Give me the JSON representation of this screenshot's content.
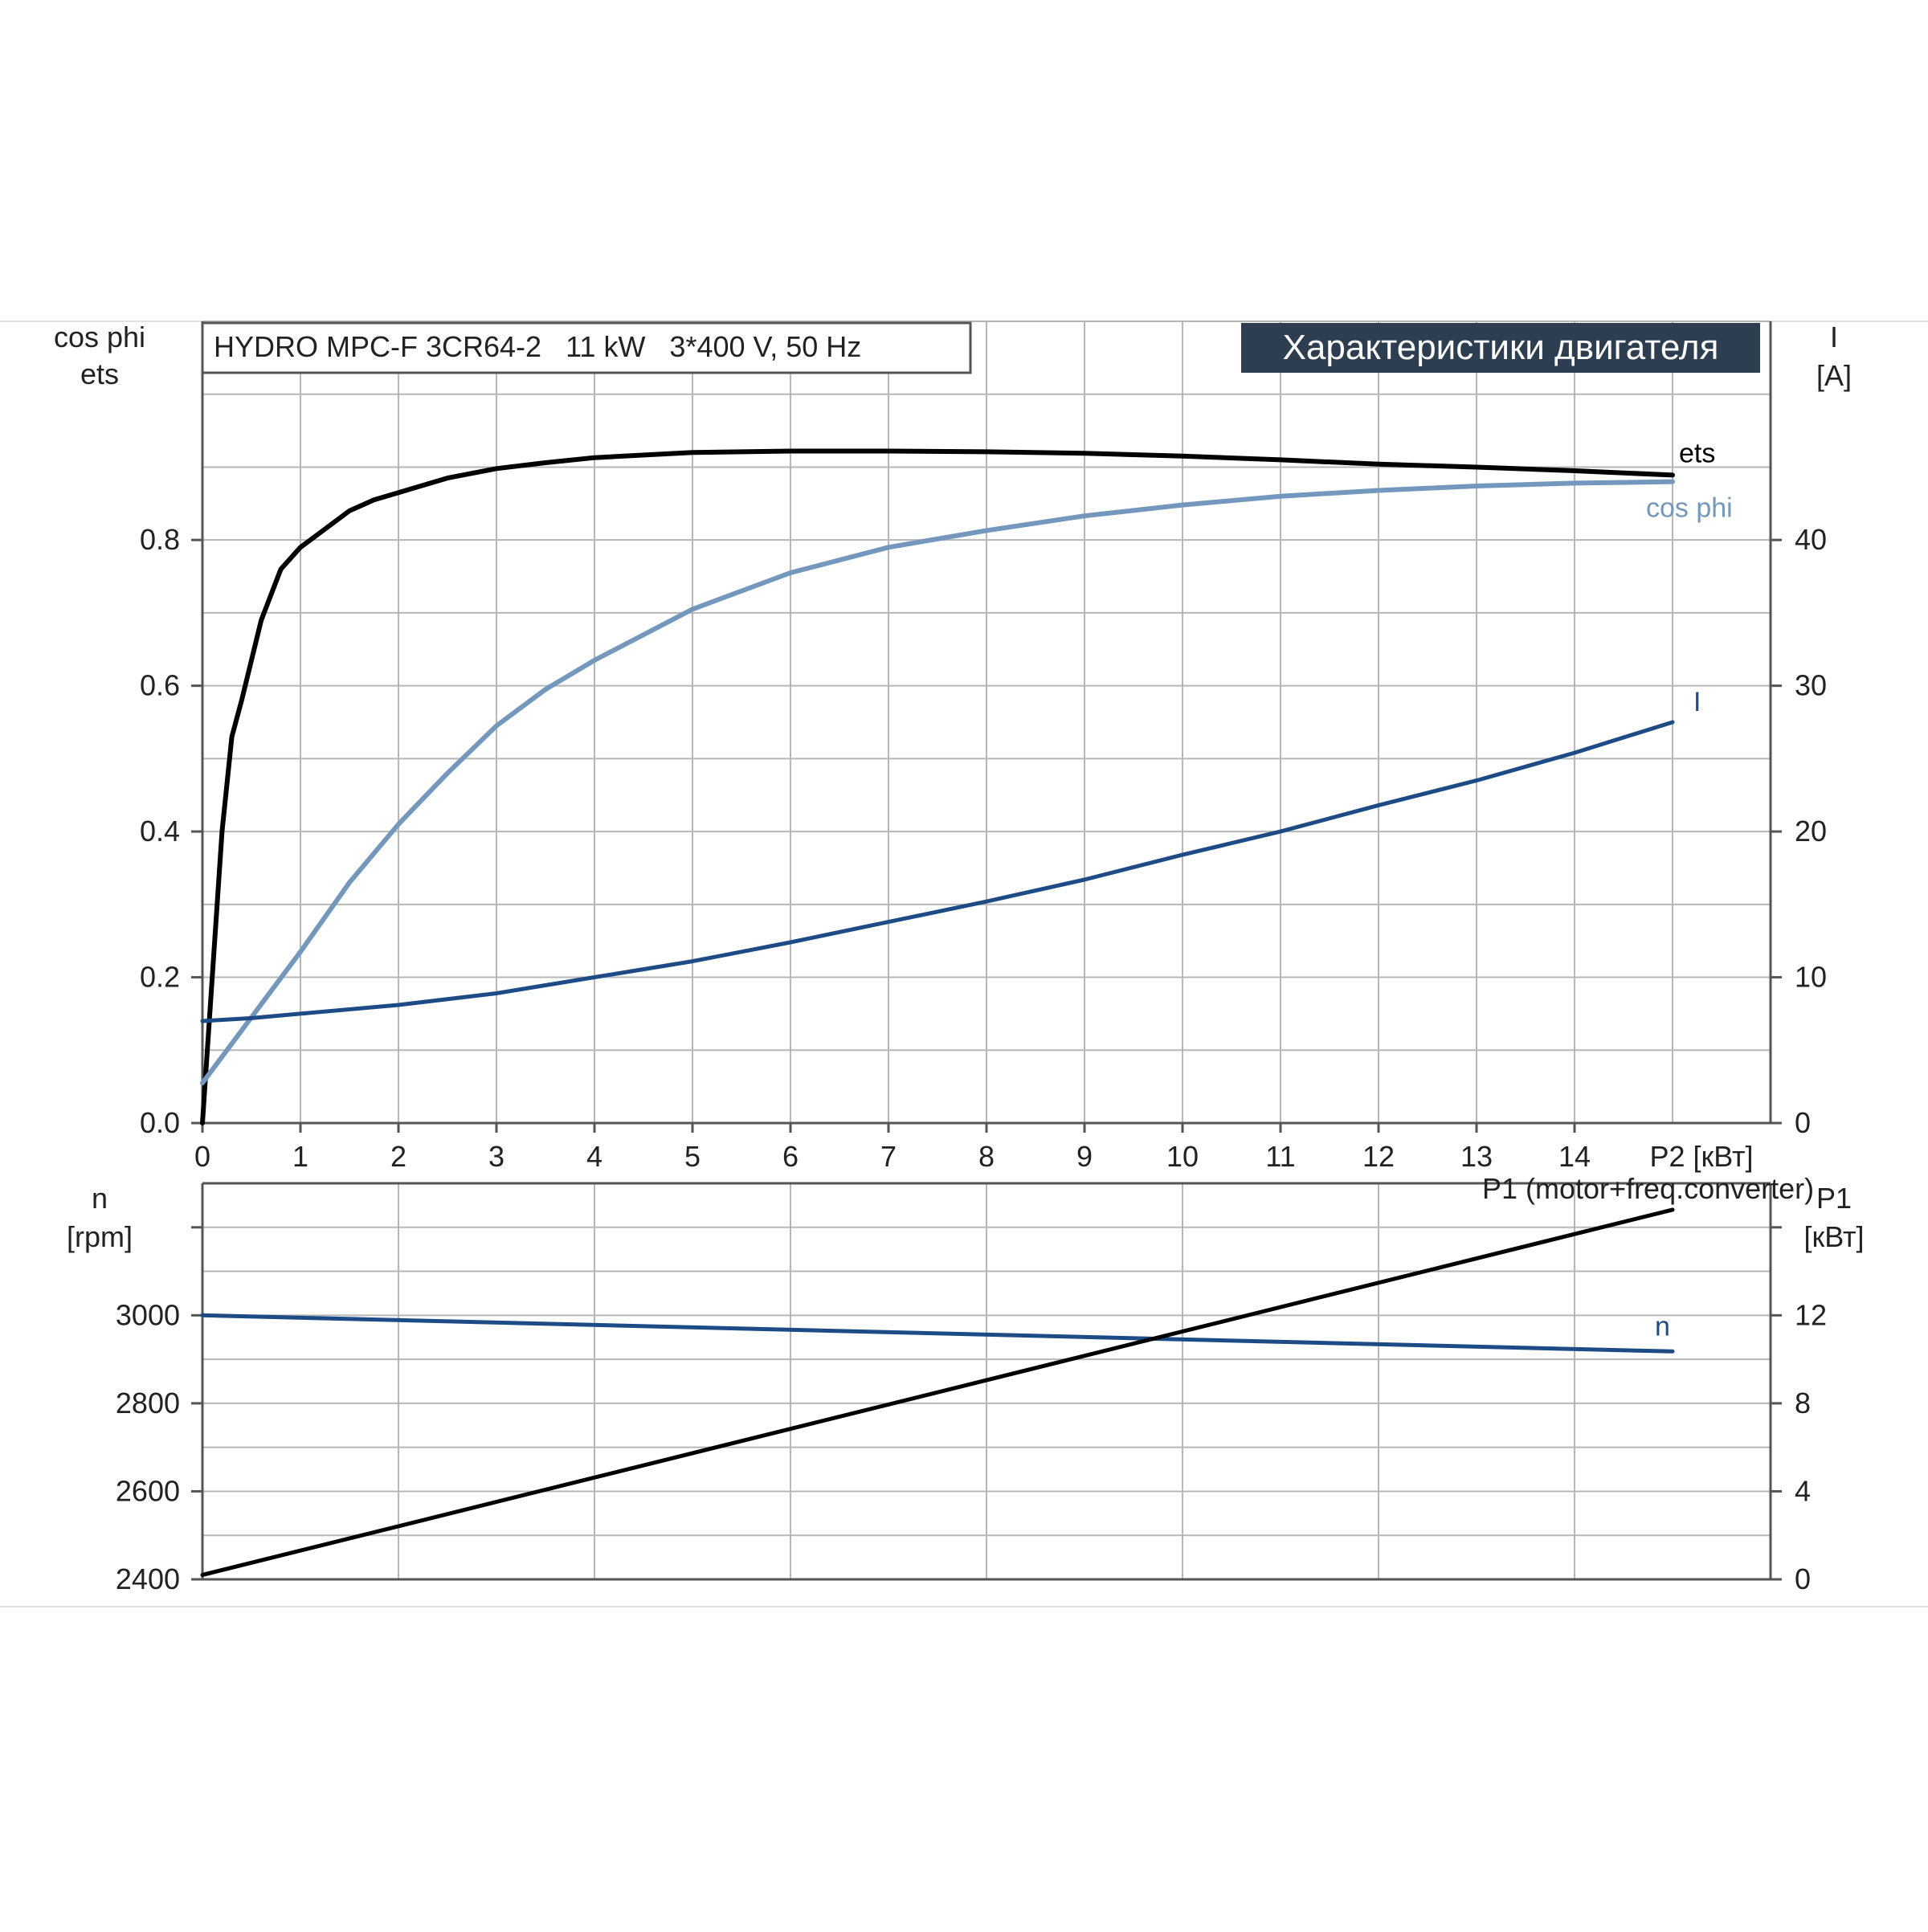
{
  "chart_data": [
    {
      "type": "line",
      "title": "HYDRO MPC-F 3CR64-2   11 kW   3*400 V, 50 Hz",
      "badge": "Характеристики двигателя",
      "colors": {
        "ets": "#000000",
        "cos_phi": "#7397bd",
        "I": "#1d4b86",
        "badge_bg": "#2c3e50",
        "badge_text": "#ffffff",
        "grid": "#b7b7b7"
      },
      "xlabel": "P2 [кВт]",
      "xlim": [
        0,
        16
      ],
      "x_ticks": [
        "0",
        "1",
        "2",
        "3",
        "4",
        "5",
        "6",
        "7",
        "8",
        "9",
        "10",
        "11",
        "12",
        "13",
        "14"
      ],
      "y_left_label_1": "cos phi",
      "y_left_label_2": "ets",
      "y_left_lim": [
        0,
        1.1
      ],
      "y_left_ticks": [
        "0.0",
        "0.2",
        "0.4",
        "0.6",
        "0.8"
      ],
      "y_right_label_1": "I",
      "y_right_label_2": "[A]",
      "y_right_lim": [
        0,
        55
      ],
      "y_right_ticks": [
        "0",
        "10",
        "20",
        "30",
        "40"
      ],
      "grid": true,
      "series": [
        {
          "name": "ets",
          "key": "ets",
          "axis": "left",
          "x": [
            0,
            0.1,
            0.2,
            0.3,
            0.4,
            0.6,
            0.8,
            1.0,
            1.25,
            1.5,
            1.75,
            2.0,
            2.5,
            3.0,
            3.5,
            4.0,
            5.0,
            6.0,
            7.0,
            8.0,
            9.0,
            10.0,
            11.0,
            12.0,
            13.0,
            14.0,
            15.0
          ],
          "y": [
            0.0,
            0.2,
            0.4,
            0.53,
            0.58,
            0.69,
            0.76,
            0.79,
            0.815,
            0.84,
            0.855,
            0.865,
            0.885,
            0.898,
            0.906,
            0.913,
            0.92,
            0.922,
            0.922,
            0.921,
            0.919,
            0.915,
            0.91,
            0.904,
            0.9,
            0.895,
            0.889
          ]
        },
        {
          "name": "cos phi",
          "key": "cos_phi",
          "axis": "left",
          "x": [
            0,
            0.25,
            0.5,
            0.75,
            1.0,
            1.5,
            2.0,
            2.5,
            3.0,
            3.5,
            4.0,
            5.0,
            6.0,
            7.0,
            8.0,
            9.0,
            10.0,
            11.0,
            12.0,
            13.0,
            14.0,
            15.0
          ],
          "y": [
            0.055,
            0.1,
            0.145,
            0.19,
            0.235,
            0.33,
            0.41,
            0.48,
            0.545,
            0.595,
            0.635,
            0.705,
            0.755,
            0.79,
            0.813,
            0.833,
            0.848,
            0.86,
            0.868,
            0.874,
            0.878,
            0.88
          ]
        },
        {
          "name": "I",
          "key": "I",
          "axis": "right",
          "x": [
            0,
            0.5,
            1.0,
            2.0,
            3.0,
            4.0,
            5.0,
            6.0,
            7.0,
            8.0,
            9.0,
            10.0,
            11.0,
            12.0,
            13.0,
            14.0,
            15.0
          ],
          "y": [
            7.0,
            7.2,
            7.5,
            8.1,
            8.9,
            10.0,
            11.1,
            12.4,
            13.8,
            15.2,
            16.7,
            18.4,
            20.0,
            21.8,
            23.5,
            25.4,
            27.5
          ]
        }
      ]
    },
    {
      "type": "line",
      "xlim": [
        0,
        16
      ],
      "y_left_label_1": "n",
      "y_left_label_2": "[rpm]",
      "y_left_lim": [
        2400,
        3300
      ],
      "y_left_ticks": [
        "2400",
        "2600",
        "2800",
        "3000"
      ],
      "y_right_label_1": "P1",
      "y_right_label_2": "[кВт]",
      "y_right_lim": [
        0,
        18
      ],
      "y_right_ticks": [
        "0",
        "4",
        "8",
        "12"
      ],
      "grid": true,
      "series": [
        {
          "name": "n",
          "key": "n",
          "axis": "left",
          "x": [
            0,
            15
          ],
          "y": [
            3000,
            2918
          ]
        },
        {
          "name": "P1 (motor+freq.converter)",
          "key": "P1",
          "axis": "right",
          "x": [
            0,
            15
          ],
          "y": [
            0.2,
            16.8
          ]
        }
      ]
    }
  ]
}
